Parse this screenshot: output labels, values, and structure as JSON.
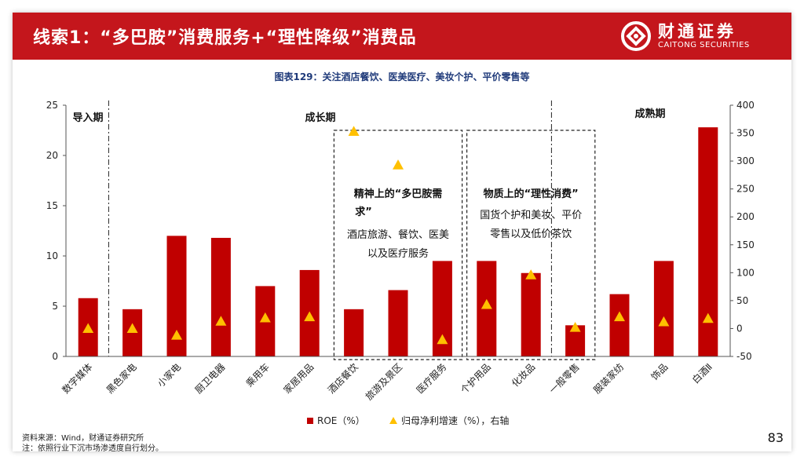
{
  "header": {
    "title": "线索1：“多巴胺”消费服务+“理性降级”消费品",
    "logo_cn": "财通证券",
    "logo_en": "CAITONG SECURITIES"
  },
  "chart_caption": "图表129：关注酒店餐饮、医美医疗、美妆个护、平价零售等",
  "phases": [
    "导入期",
    "成长期",
    "成熟期"
  ],
  "annotations": {
    "left_box_title": "精神上的“多巴胺需求”",
    "left_box_lines": [
      "酒店旅游、餐饮、医美",
      "以及医疗服务"
    ],
    "right_box_title": "物质上的“理性消费”",
    "right_box_lines": [
      "国货个护和美妆、平价",
      "零售以及低价茶饮"
    ]
  },
  "footer": {
    "source": "资料来源：Wind，财通证券研究所",
    "note": "注：依照行业下沉市场渗透度自行划分。",
    "page": "83"
  },
  "colors": {
    "brand_red": "#c4161c",
    "bar": "#c00000",
    "triangle": "#ffc000"
  },
  "chart_data": {
    "type": "bar",
    "categories": [
      "数字媒体",
      "黑色家电",
      "小家电",
      "厨卫电器",
      "乘用车",
      "家居用品",
      "酒店餐饮",
      "旅游及景区",
      "医疗服务",
      "个护用品",
      "化妆品",
      "一般零售",
      "服装家纺",
      "饰品",
      "白酒Ⅱ"
    ],
    "series": [
      {
        "name": "ROE（%）",
        "type": "bar",
        "axis": "left",
        "values": [
          5.8,
          4.7,
          12.0,
          11.8,
          7.0,
          8.6,
          4.7,
          6.6,
          9.5,
          9.5,
          8.3,
          3.1,
          6.2,
          9.5,
          22.8
        ]
      },
      {
        "name": "归母净利增速（%），右轴",
        "type": "scatter",
        "axis": "right",
        "values": [
          0,
          0,
          -12,
          13,
          19,
          21,
          353,
          293,
          -20,
          43,
          96,
          2,
          21,
          12,
          18
        ]
      }
    ],
    "ylim_left": [
      0,
      25
    ],
    "yticks_left": [
      0,
      5,
      10,
      15,
      20,
      25
    ],
    "ylim_right": [
      -50,
      400
    ],
    "yticks_right": [
      -50,
      0,
      50,
      100,
      150,
      200,
      250,
      300,
      350,
      400
    ],
    "legend": [
      "ROE（%）",
      "归母净利增速（%），右轴"
    ],
    "legend_position": "bottom"
  }
}
